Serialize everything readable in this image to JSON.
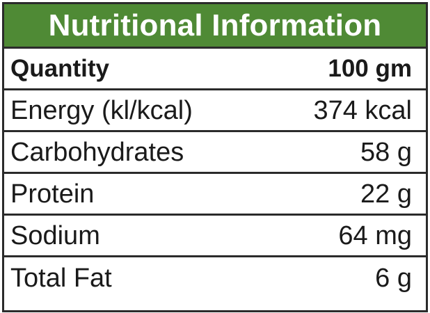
{
  "title": "Nutritional Information",
  "header": {
    "label": "Quantity",
    "value": "100 gm"
  },
  "rows": [
    {
      "label": "Energy (kl/kcal)",
      "value": "374 kcal"
    },
    {
      "label": "Carbohydrates",
      "value": "58 g"
    },
    {
      "label": "Protein",
      "value": "22 g"
    },
    {
      "label": "Sodium",
      "value": "64 mg"
    },
    {
      "label": "Total Fat",
      "value": "6 g"
    }
  ],
  "colors": {
    "title_background": "#4f8a35",
    "title_text": "#ffffff",
    "border": "#2b2b2b",
    "text": "#1a1a1a"
  }
}
